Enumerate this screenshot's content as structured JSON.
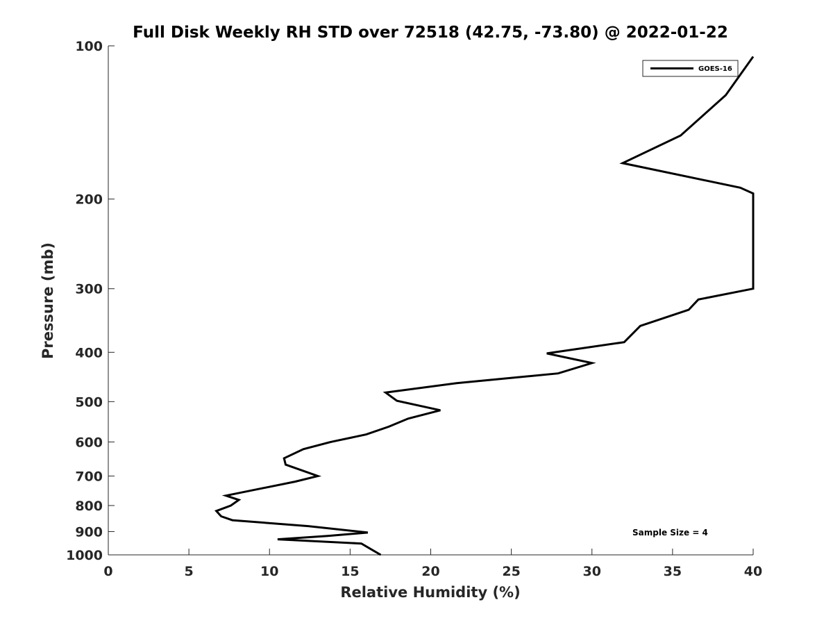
{
  "chart_data": {
    "type": "line",
    "title": "Full Disk Weekly RH STD over 72518 (42.75, -73.80) @ 2022-01-22",
    "xlabel": "Relative Humidity (%)",
    "ylabel": "Pressure (mb)",
    "xlim": [
      0,
      40
    ],
    "ylim": [
      100,
      1000
    ],
    "y_scale": "log",
    "y_reversed": true,
    "grid": false,
    "legend_position": "top-right",
    "x_ticks": [
      "0",
      "5",
      "10",
      "15",
      "20",
      "25",
      "30",
      "35",
      "40"
    ],
    "y_ticks": [
      "100",
      "200",
      "300",
      "400",
      "500",
      "600",
      "700",
      "800",
      "900",
      "1000"
    ],
    "annotation": "Sample Size = 4",
    "series": [
      {
        "name": "GOES-16",
        "color": "#000000",
        "points": [
          {
            "x": 40.0,
            "y": 105
          },
          {
            "x": 38.3,
            "y": 125
          },
          {
            "x": 35.5,
            "y": 150
          },
          {
            "x": 31.9,
            "y": 170
          },
          {
            "x": 39.2,
            "y": 190
          },
          {
            "x": 40.0,
            "y": 195
          },
          {
            "x": 40.0,
            "y": 300
          },
          {
            "x": 36.6,
            "y": 315
          },
          {
            "x": 36.0,
            "y": 330
          },
          {
            "x": 33.0,
            "y": 355
          },
          {
            "x": 32.0,
            "y": 382
          },
          {
            "x": 27.2,
            "y": 402
          },
          {
            "x": 30.0,
            "y": 420
          },
          {
            "x": 27.9,
            "y": 440
          },
          {
            "x": 21.6,
            "y": 460
          },
          {
            "x": 17.2,
            "y": 480
          },
          {
            "x": 17.9,
            "y": 498
          },
          {
            "x": 20.6,
            "y": 520
          },
          {
            "x": 18.6,
            "y": 540
          },
          {
            "x": 17.4,
            "y": 560
          },
          {
            "x": 16.0,
            "y": 580
          },
          {
            "x": 13.8,
            "y": 600
          },
          {
            "x": 12.1,
            "y": 620
          },
          {
            "x": 10.9,
            "y": 646
          },
          {
            "x": 11.0,
            "y": 665
          },
          {
            "x": 13.0,
            "y": 700
          },
          {
            "x": 11.6,
            "y": 718
          },
          {
            "x": 7.3,
            "y": 765
          },
          {
            "x": 8.1,
            "y": 780
          },
          {
            "x": 7.6,
            "y": 800
          },
          {
            "x": 6.7,
            "y": 820
          },
          {
            "x": 7.0,
            "y": 840
          },
          {
            "x": 7.7,
            "y": 855
          },
          {
            "x": 12.4,
            "y": 878
          },
          {
            "x": 16.1,
            "y": 904
          },
          {
            "x": 13.6,
            "y": 918
          },
          {
            "x": 10.5,
            "y": 932
          },
          {
            "x": 15.7,
            "y": 950
          },
          {
            "x": 16.3,
            "y": 975
          },
          {
            "x": 16.9,
            "y": 1000
          }
        ]
      }
    ]
  }
}
